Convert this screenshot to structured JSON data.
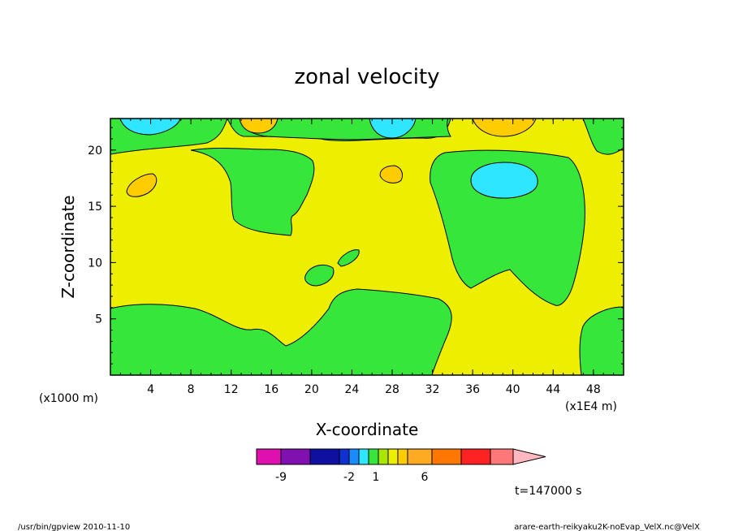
{
  "chart_data": {
    "type": "heatmap",
    "title": "zonal velocity",
    "xlabel": "X-coordinate",
    "ylabel": "Z-coordinate",
    "x_unit": "(x1000 m)",
    "x_scale_note": "(x1E4 m)",
    "x_ticks": [
      4,
      8,
      12,
      16,
      20,
      24,
      28,
      32,
      36,
      40,
      44,
      48
    ],
    "y_ticks": [
      5,
      10,
      15,
      20
    ],
    "xlim": [
      0,
      51
    ],
    "ylim": [
      0,
      22.8
    ],
    "colorbar": {
      "colors": [
        "#e010b0",
        "#8010b0",
        "#1010a0",
        "#1030d0",
        "#1a8cff",
        "#2ee6ff",
        "#36e63a",
        "#a8e600",
        "#eeee00",
        "#ffcc00",
        "#ffaa22",
        "#ff7700",
        "#ff2222",
        "#ff7777",
        "#ffb8c0"
      ],
      "tick_labels": [
        "-9",
        "-2",
        "1",
        "6"
      ]
    },
    "time_label": "t=147000 s",
    "regions": [
      {
        "value": "positive",
        "color": "#eeee00"
      },
      {
        "value": "negative",
        "color": "#36e63a"
      },
      {
        "value": "strong-negative",
        "color": "#2ee6ff"
      },
      {
        "value": "strong-positive",
        "color": "#ffcc00"
      }
    ]
  },
  "footer": {
    "left": "/usr/bin/gpview  2010-11-10",
    "right": "arare-earth-reikyaku2K-noEvap_VelX.nc@VelX"
  }
}
